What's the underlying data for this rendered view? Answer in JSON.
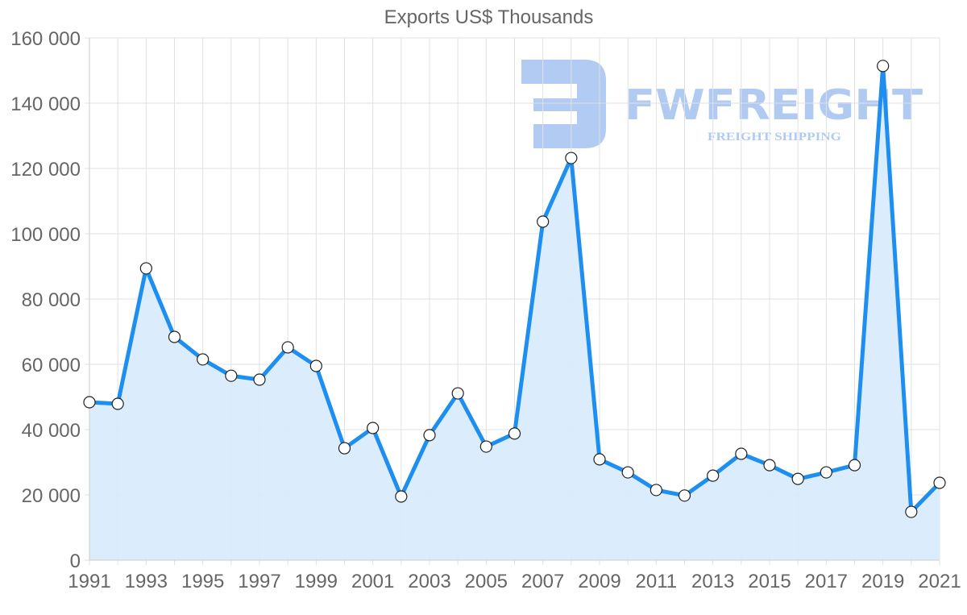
{
  "chart_data": {
    "type": "area",
    "title": "Exports US$ Thousands",
    "xlabel": "",
    "ylabel": "",
    "ylim": [
      0,
      160000
    ],
    "y_ticks": [
      0,
      20000,
      40000,
      60000,
      80000,
      100000,
      120000,
      140000,
      160000
    ],
    "y_tick_labels": [
      "0",
      "20 000",
      "40 000",
      "60 000",
      "80 000",
      "100 000",
      "120 000",
      "140 000",
      "160 000"
    ],
    "x_tick_labels": [
      "1991",
      "1993",
      "1995",
      "1997",
      "1999",
      "2001",
      "2003",
      "2005",
      "2007",
      "2009",
      "2011",
      "2013",
      "2015",
      "2017",
      "2019",
      "2021"
    ],
    "grid": true,
    "legend": "none",
    "categories": [
      "1991",
      "1992",
      "1993",
      "1994",
      "1995",
      "1996",
      "1997",
      "1998",
      "1999",
      "2000",
      "2001",
      "2002",
      "2003",
      "2004",
      "2005",
      "2006",
      "2007",
      "2008",
      "2009",
      "2010",
      "2011",
      "2012",
      "2013",
      "2014",
      "2015",
      "2016",
      "2017",
      "2018",
      "2019",
      "2020",
      "2021"
    ],
    "series": [
      {
        "name": "Exports US$ Thousands",
        "values": [
          48400,
          47900,
          89400,
          68400,
          61500,
          56500,
          55300,
          65200,
          59500,
          34300,
          40500,
          19500,
          38300,
          51100,
          34800,
          38800,
          103700,
          123200,
          30900,
          26900,
          21500,
          19800,
          25900,
          32600,
          29100,
          24900,
          26900,
          29100,
          151400,
          14800,
          23700
        ]
      }
    ]
  },
  "colors": {
    "line": "#1e8ff0",
    "fill": "#d9ecfc",
    "grid": "#e1e1e1",
    "text": "#666666",
    "watermark": "#adc8f1"
  },
  "watermark": {
    "brand": "FWFREIGHT",
    "tagline": "FREIGHT SHIPPING"
  }
}
